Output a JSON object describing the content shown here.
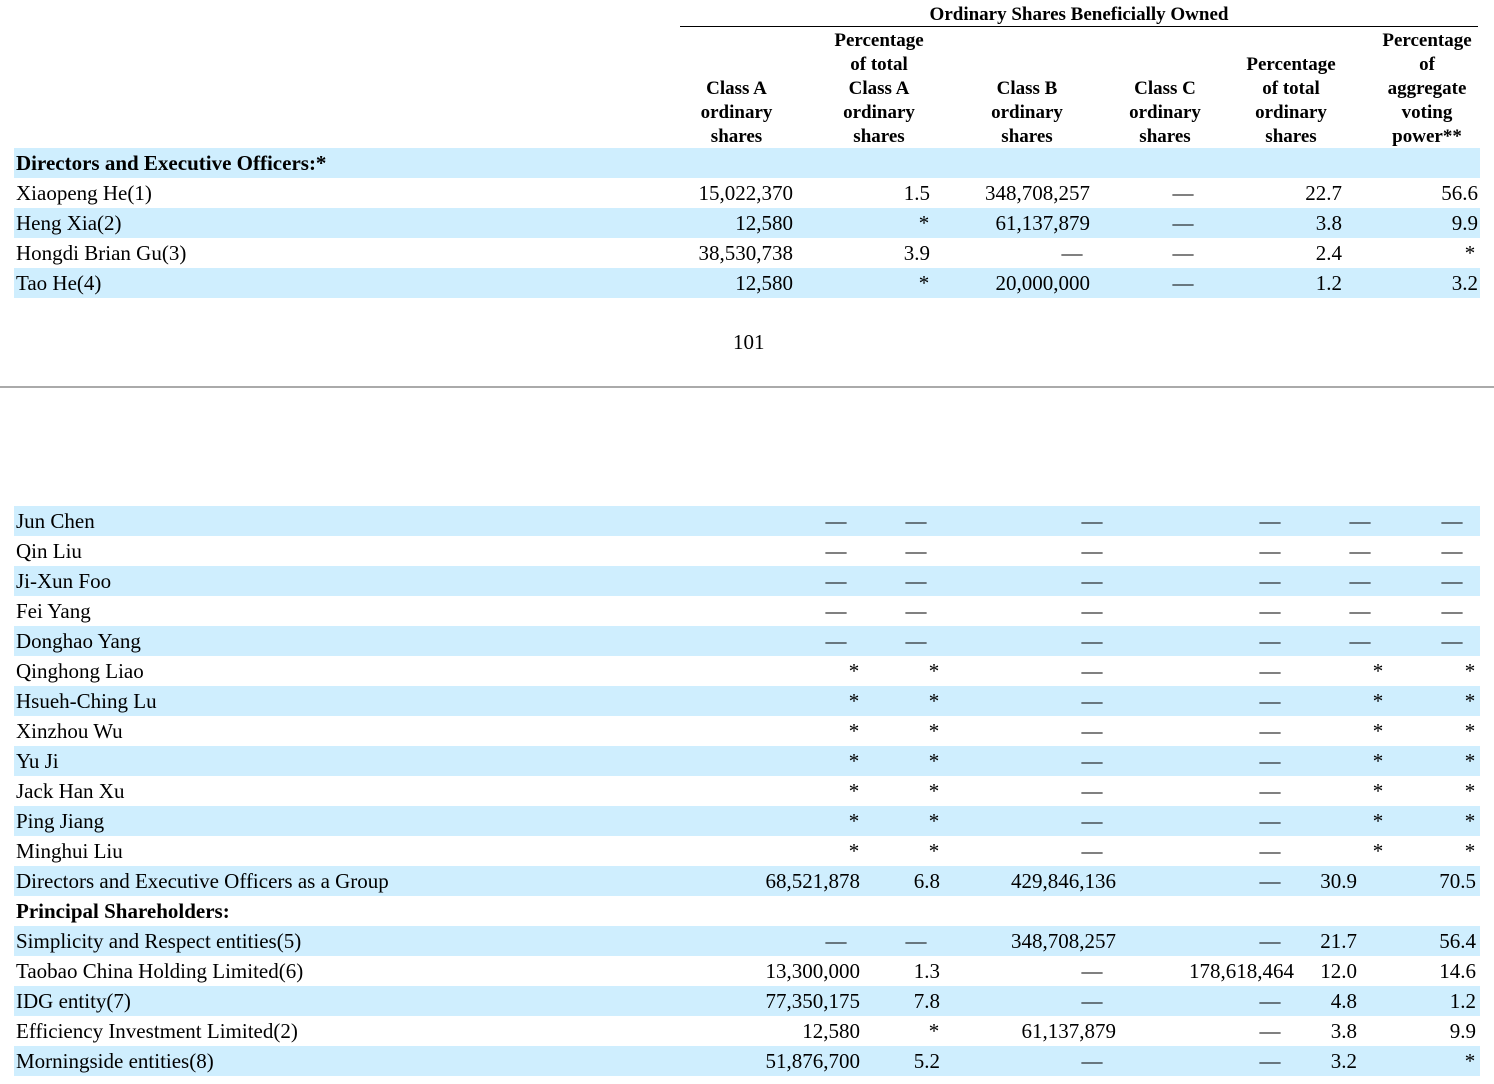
{
  "header": {
    "title": "Ordinary Shares Beneficially Owned",
    "columns": [
      [
        "Class A",
        "ordinary",
        "shares"
      ],
      [
        "Percentage",
        "of total",
        "Class A",
        "ordinary",
        "shares"
      ],
      [
        "Class B",
        "ordinary",
        "shares"
      ],
      [
        "Class C",
        "ordinary",
        "shares"
      ],
      [
        "Percentage",
        "of total",
        "ordinary",
        "shares"
      ],
      [
        "Percentage",
        "of",
        "aggregate",
        "voting",
        "power**"
      ]
    ]
  },
  "tables": [
    {
      "rows": [
        {
          "label": "Directors and Executive Officers:*"
        },
        {
          "label": "Xiaopeng He(1)",
          "cells": [
            "15,022,370",
            "1.5",
            "348,708,257",
            "—",
            "22.7",
            "56.6"
          ]
        },
        {
          "label": "Heng Xia(2)",
          "cells": [
            "12,580",
            "*",
            "61,137,879",
            "—",
            "3.8",
            "9.9"
          ]
        },
        {
          "label": "Hongdi Brian Gu(3)",
          "cells": [
            "38,530,738",
            "3.9",
            "—",
            "—",
            "2.4",
            "*"
          ]
        },
        {
          "label": "Tao He(4)",
          "cells": [
            "12,580",
            "*",
            "20,000,000",
            "—",
            "1.2",
            "3.2"
          ]
        }
      ]
    },
    {
      "rows": [
        {
          "label": "Jun Chen",
          "cells": [
            "—",
            "—",
            "—",
            "—",
            "—",
            "—"
          ]
        },
        {
          "label": "Qin Liu",
          "cells": [
            "—",
            "—",
            "—",
            "—",
            "—",
            "—"
          ]
        },
        {
          "label": "Ji-Xun Foo",
          "cells": [
            "—",
            "—",
            "—",
            "—",
            "—",
            "—"
          ]
        },
        {
          "label": "Fei Yang",
          "cells": [
            "—",
            "—",
            "—",
            "—",
            "—",
            "—"
          ]
        },
        {
          "label": "Donghao Yang",
          "cells": [
            "—",
            "—",
            "—",
            "—",
            "—",
            "—"
          ]
        },
        {
          "label": "Qinghong Liao",
          "cells": [
            "*",
            "*",
            "—",
            "—",
            "*",
            "*"
          ]
        },
        {
          "label": "Hsueh-Ching Lu",
          "cells": [
            "*",
            "*",
            "—",
            "—",
            "*",
            "*"
          ]
        },
        {
          "label": "Xinzhou Wu",
          "cells": [
            "*",
            "*",
            "—",
            "—",
            "*",
            "*"
          ]
        },
        {
          "label": "Yu Ji",
          "cells": [
            "*",
            "*",
            "—",
            "—",
            "*",
            "*"
          ]
        },
        {
          "label": "Jack Han Xu",
          "cells": [
            "*",
            "*",
            "—",
            "—",
            "*",
            "*"
          ]
        },
        {
          "label": "Ping Jiang",
          "cells": [
            "*",
            "*",
            "—",
            "—",
            "*",
            "*"
          ]
        },
        {
          "label": "Minghui Liu",
          "cells": [
            "*",
            "*",
            "—",
            "—",
            "*",
            "*"
          ]
        },
        {
          "label": "Directors and Executive Officers as a Group",
          "cells": [
            "68,521,878",
            "6.8",
            "429,846,136",
            "—",
            "30.9",
            "70.5"
          ]
        },
        {
          "label": "Principal Shareholders:"
        },
        {
          "label": "Simplicity and Respect entities(5)",
          "cells": [
            "—",
            "—",
            "348,708,257",
            "—",
            "21.7",
            "56.4"
          ]
        },
        {
          "label": "Taobao China Holding Limited(6)",
          "cells": [
            "13,300,000",
            "1.3",
            "—",
            "178,618,464",
            "12.0",
            "14.6"
          ]
        },
        {
          "label": "IDG entity(7)",
          "cells": [
            "77,350,175",
            "7.8",
            "—",
            "—",
            "4.8",
            "1.2"
          ]
        },
        {
          "label": "Efficiency Investment Limited(2)",
          "cells": [
            "12,580",
            "*",
            "61,137,879",
            "—",
            "3.8",
            "9.9"
          ]
        },
        {
          "label": "Morningside entities(8)",
          "cells": [
            "51,876,700",
            "5.2",
            "—",
            "—",
            "3.2",
            "*"
          ]
        }
      ]
    }
  ],
  "page_number": "101"
}
